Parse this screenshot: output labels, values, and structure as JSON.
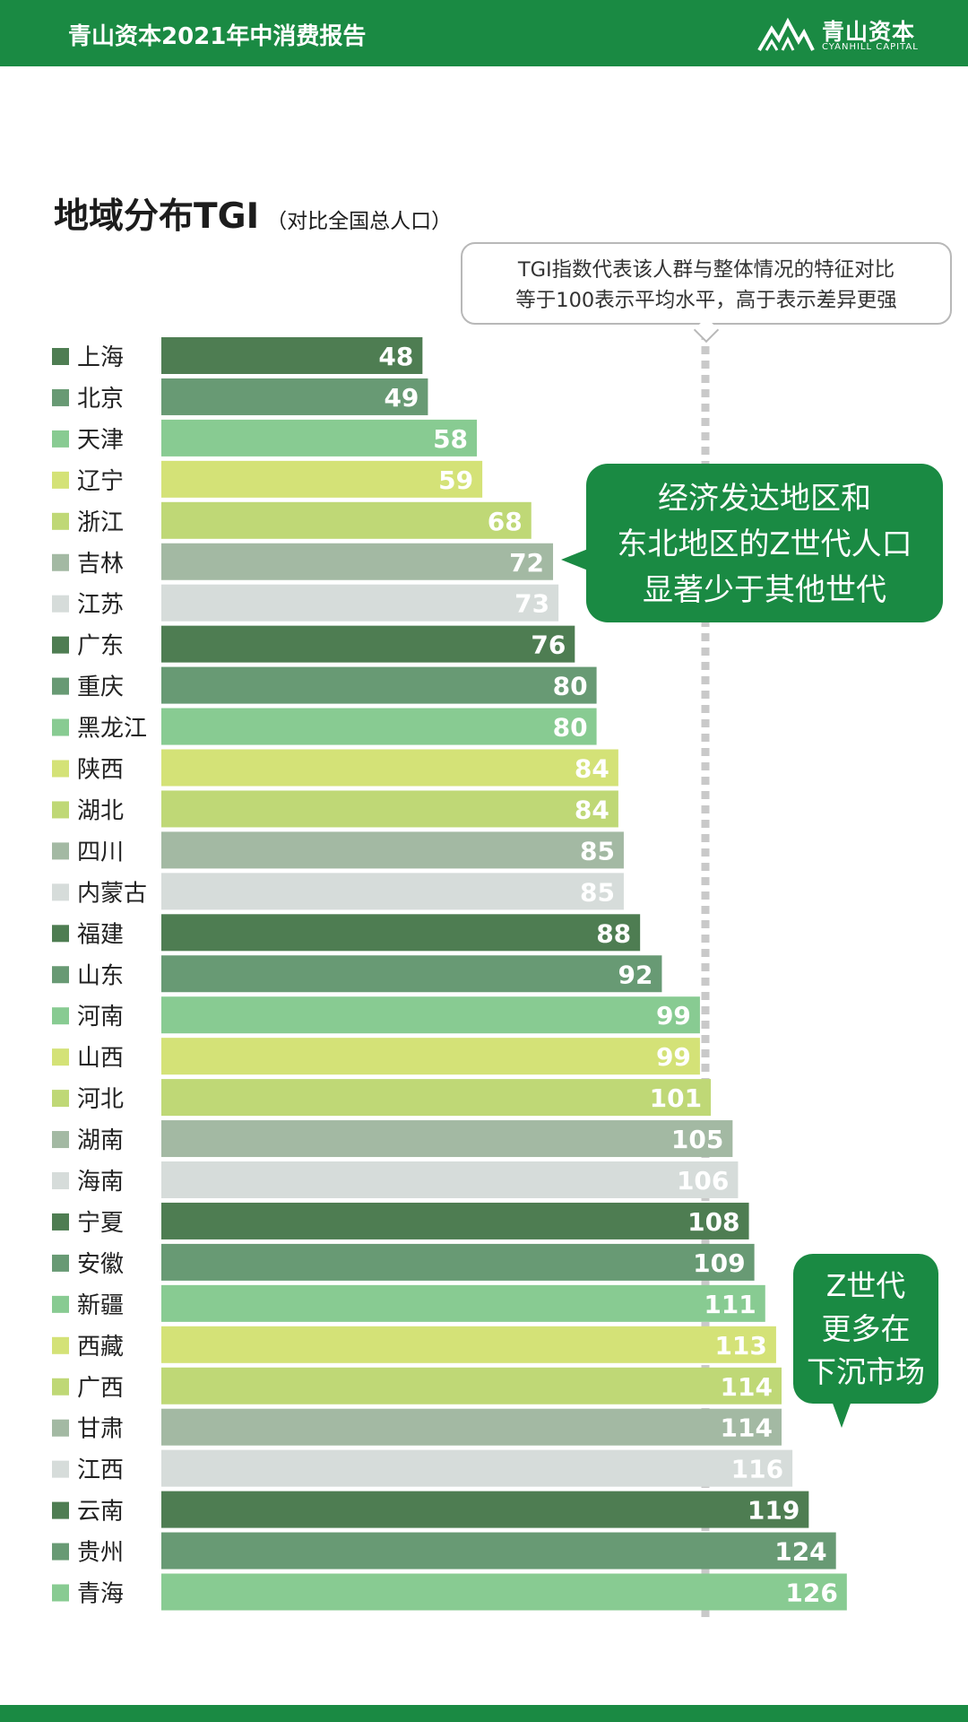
{
  "header": {
    "title": "青山资本2021年中消费报告",
    "logo_cn": "青山资本",
    "logo_en": "CYANHILL CAPITAL"
  },
  "chart_data": {
    "type": "bar",
    "orientation": "horizontal",
    "title": "地域分布TGI",
    "subtitle": "（对比全国总人口）",
    "reference_line": 100,
    "categories": [
      "上海",
      "北京",
      "天津",
      "辽宁",
      "浙江",
      "吉林",
      "江苏",
      "广东",
      "重庆",
      "黑龙江",
      "陕西",
      "湖北",
      "四川",
      "内蒙古",
      "福建",
      "山东",
      "河南",
      "山西",
      "河北",
      "湖南",
      "海南",
      "宁夏",
      "安徽",
      "新疆",
      "西藏",
      "广西",
      "甘肃",
      "江西",
      "云南",
      "贵州",
      "青海"
    ],
    "values": [
      48,
      49,
      58,
      59,
      68,
      72,
      73,
      76,
      80,
      80,
      84,
      84,
      85,
      85,
      88,
      92,
      99,
      99,
      101,
      105,
      106,
      108,
      109,
      111,
      113,
      114,
      114,
      116,
      119,
      124,
      126
    ],
    "xlim": [
      0,
      126
    ],
    "legend": "left",
    "colors": [
      "#4e7d52",
      "#689a74",
      "#88cb92",
      "#d4e277",
      "#bfd876",
      "#a3b9a3",
      "#d6dcda"
    ]
  },
  "note": {
    "line1": "TGI指数代表该人群与整体情况的特征对比",
    "line2": "等于100表示平均水平，高于表示差异更强"
  },
  "callout1": {
    "line1": "经济发达地区和",
    "line2": "东北地区的Z世代人口",
    "line3": "显著少于其他世代"
  },
  "callout2": {
    "line1": "Z世代",
    "line2": "更多在",
    "line3": "下沉市场"
  }
}
